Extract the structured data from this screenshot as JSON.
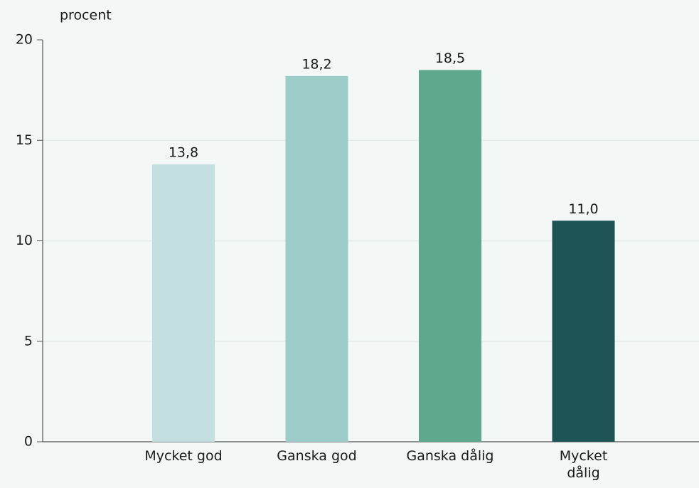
{
  "chart_data": {
    "type": "bar",
    "y_label": "procent",
    "categories": [
      "Mycket god",
      "Ganska god",
      "Ganska dålig",
      "Mycket dålig"
    ],
    "values": [
      13.8,
      18.2,
      18.5,
      11.0
    ],
    "value_labels": [
      "13,8",
      "18,2",
      "18,5",
      "11,0"
    ],
    "colors": [
      "#c3dfdf",
      "#9ccdc8",
      "#5ea98d",
      "#1d5355"
    ],
    "ylim": [
      0,
      20
    ],
    "yticks": [
      0,
      5,
      10,
      15,
      20
    ],
    "grid": true
  }
}
